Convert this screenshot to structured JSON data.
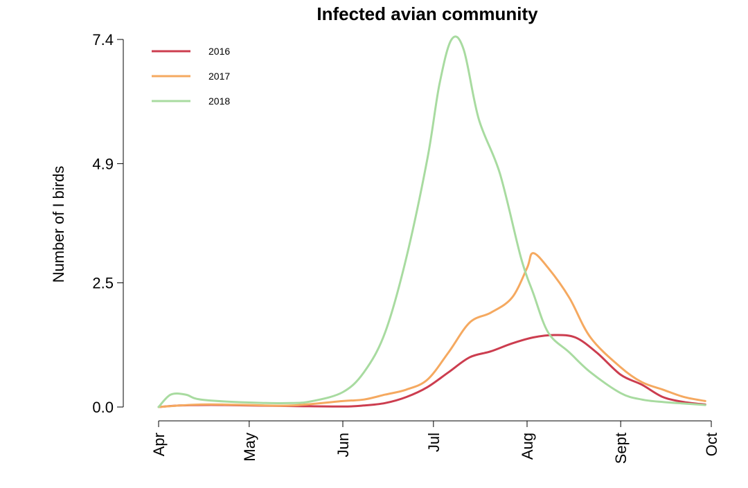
{
  "chart_data": {
    "type": "line",
    "title": "Infected avian community",
    "xlabel": "",
    "ylabel": "Number of I birds",
    "x_ticks": [
      "Apr",
      "May",
      "Jun",
      "Jul",
      "Aug",
      "Sept",
      "Oct"
    ],
    "y_ticks": [
      "0.0",
      "2.5",
      "4.9",
      "7.4"
    ],
    "xlim": [
      "2020-04-01",
      "2020-10-01"
    ],
    "ylim": [
      0,
      7.4
    ],
    "legend_position": "top-left",
    "grid": false,
    "series": [
      {
        "name": "2016",
        "color": "#cc3d4f",
        "points": [
          [
            "2020-04-01",
            0.0
          ],
          [
            "2020-04-08",
            0.03
          ],
          [
            "2020-04-15",
            0.04
          ],
          [
            "2020-04-22",
            0.04
          ],
          [
            "2020-05-01",
            0.03
          ],
          [
            "2020-05-15",
            0.02
          ],
          [
            "2020-06-01",
            0.01
          ],
          [
            "2020-06-08",
            0.03
          ],
          [
            "2020-06-15",
            0.08
          ],
          [
            "2020-06-22",
            0.2
          ],
          [
            "2020-06-29",
            0.4
          ],
          [
            "2020-07-06",
            0.7
          ],
          [
            "2020-07-13",
            1.0
          ],
          [
            "2020-07-20",
            1.12
          ],
          [
            "2020-07-27",
            1.28
          ],
          [
            "2020-08-03",
            1.4
          ],
          [
            "2020-08-10",
            1.45
          ],
          [
            "2020-08-17",
            1.4
          ],
          [
            "2020-08-24",
            1.1
          ],
          [
            "2020-09-01",
            0.65
          ],
          [
            "2020-09-08",
            0.45
          ],
          [
            "2020-09-15",
            0.2
          ],
          [
            "2020-09-22",
            0.1
          ],
          [
            "2020-09-29",
            0.05
          ]
        ]
      },
      {
        "name": "2017",
        "color": "#f5a960",
        "points": [
          [
            "2020-04-01",
            0.0
          ],
          [
            "2020-04-08",
            0.03
          ],
          [
            "2020-04-15",
            0.05
          ],
          [
            "2020-04-22",
            0.05
          ],
          [
            "2020-05-01",
            0.04
          ],
          [
            "2020-05-15",
            0.03
          ],
          [
            "2020-06-01",
            0.12
          ],
          [
            "2020-06-08",
            0.15
          ],
          [
            "2020-06-15",
            0.25
          ],
          [
            "2020-06-22",
            0.35
          ],
          [
            "2020-06-29",
            0.55
          ],
          [
            "2020-07-06",
            1.1
          ],
          [
            "2020-07-13",
            1.7
          ],
          [
            "2020-07-20",
            1.9
          ],
          [
            "2020-07-27",
            2.2
          ],
          [
            "2020-08-01",
            2.8
          ],
          [
            "2020-08-03",
            3.1
          ],
          [
            "2020-08-08",
            2.8
          ],
          [
            "2020-08-15",
            2.2
          ],
          [
            "2020-08-22",
            1.4
          ],
          [
            "2020-09-01",
            0.8
          ],
          [
            "2020-09-08",
            0.5
          ],
          [
            "2020-09-15",
            0.35
          ],
          [
            "2020-09-22",
            0.2
          ],
          [
            "2020-09-29",
            0.12
          ]
        ]
      },
      {
        "name": "2018",
        "color": "#a8dba0",
        "points": [
          [
            "2020-04-01",
            0.0
          ],
          [
            "2020-04-05",
            0.25
          ],
          [
            "2020-04-10",
            0.25
          ],
          [
            "2020-04-15",
            0.15
          ],
          [
            "2020-05-01",
            0.09
          ],
          [
            "2020-05-15",
            0.08
          ],
          [
            "2020-05-22",
            0.12
          ],
          [
            "2020-06-01",
            0.3
          ],
          [
            "2020-06-08",
            0.7
          ],
          [
            "2020-06-15",
            1.5
          ],
          [
            "2020-06-22",
            3.0
          ],
          [
            "2020-06-29",
            5.0
          ],
          [
            "2020-07-03",
            6.5
          ],
          [
            "2020-07-07",
            7.4
          ],
          [
            "2020-07-11",
            7.2
          ],
          [
            "2020-07-16",
            5.8
          ],
          [
            "2020-07-23",
            4.7
          ],
          [
            "2020-07-30",
            3.0
          ],
          [
            "2020-08-03",
            2.3
          ],
          [
            "2020-08-08",
            1.5
          ],
          [
            "2020-08-15",
            1.1
          ],
          [
            "2020-08-22",
            0.7
          ],
          [
            "2020-09-01",
            0.28
          ],
          [
            "2020-09-08",
            0.15
          ],
          [
            "2020-09-15",
            0.1
          ],
          [
            "2020-09-22",
            0.07
          ],
          [
            "2020-09-29",
            0.04
          ]
        ]
      }
    ]
  }
}
